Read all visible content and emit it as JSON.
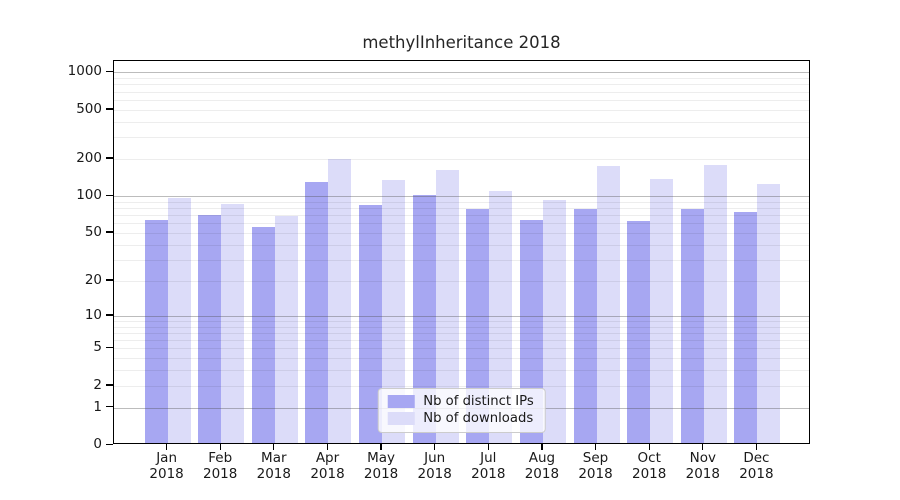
{
  "chart_data": {
    "type": "bar",
    "title": "methylInheritance 2018",
    "categories": [
      "Jan 2018",
      "Feb 2018",
      "Mar 2018",
      "Apr 2018",
      "May 2018",
      "Jun 2018",
      "Jul 2018",
      "Aug 2018",
      "Sep 2018",
      "Oct 2018",
      "Nov 2018",
      "Dec 2018"
    ],
    "series": [
      {
        "name": "Nb of distinct IPs",
        "color": "#a7a7f2",
        "values": [
          62,
          67,
          54,
          126,
          81,
          98,
          76,
          62,
          75,
          60,
          75,
          72
        ]
      },
      {
        "name": "Nb of downloads",
        "color": "#dcdcf9",
        "values": [
          93,
          83,
          66,
          191,
          131,
          156,
          106,
          90,
          168,
          132,
          172,
          121
        ]
      }
    ],
    "yticks": [
      1000,
      500,
      200,
      100,
      50,
      20,
      10,
      5,
      2,
      1,
      0
    ],
    "minor_gridlines": [
      2,
      3,
      4,
      5,
      6,
      7,
      8,
      9,
      20,
      30,
      40,
      50,
      60,
      70,
      80,
      90,
      200,
      300,
      400,
      500,
      600,
      700,
      800,
      900
    ],
    "major_gridlines": [
      1,
      10,
      100,
      1000
    ],
    "ylim": [
      0,
      1230
    ],
    "yscale": "log10(value+1), zero at baseline",
    "xlabel": "",
    "ylabel": "",
    "grid": "horizontal",
    "legend_position": "lower center"
  },
  "colors": {
    "distinct_ips_bar": "#a7a7f2",
    "downloads_bar": "#dcdcf9",
    "major_grid": "#9e9e9e",
    "minor_grid": "#ededed",
    "axis": "#000000",
    "text": "#1a1a1a",
    "legend_border": "#cccccc"
  }
}
